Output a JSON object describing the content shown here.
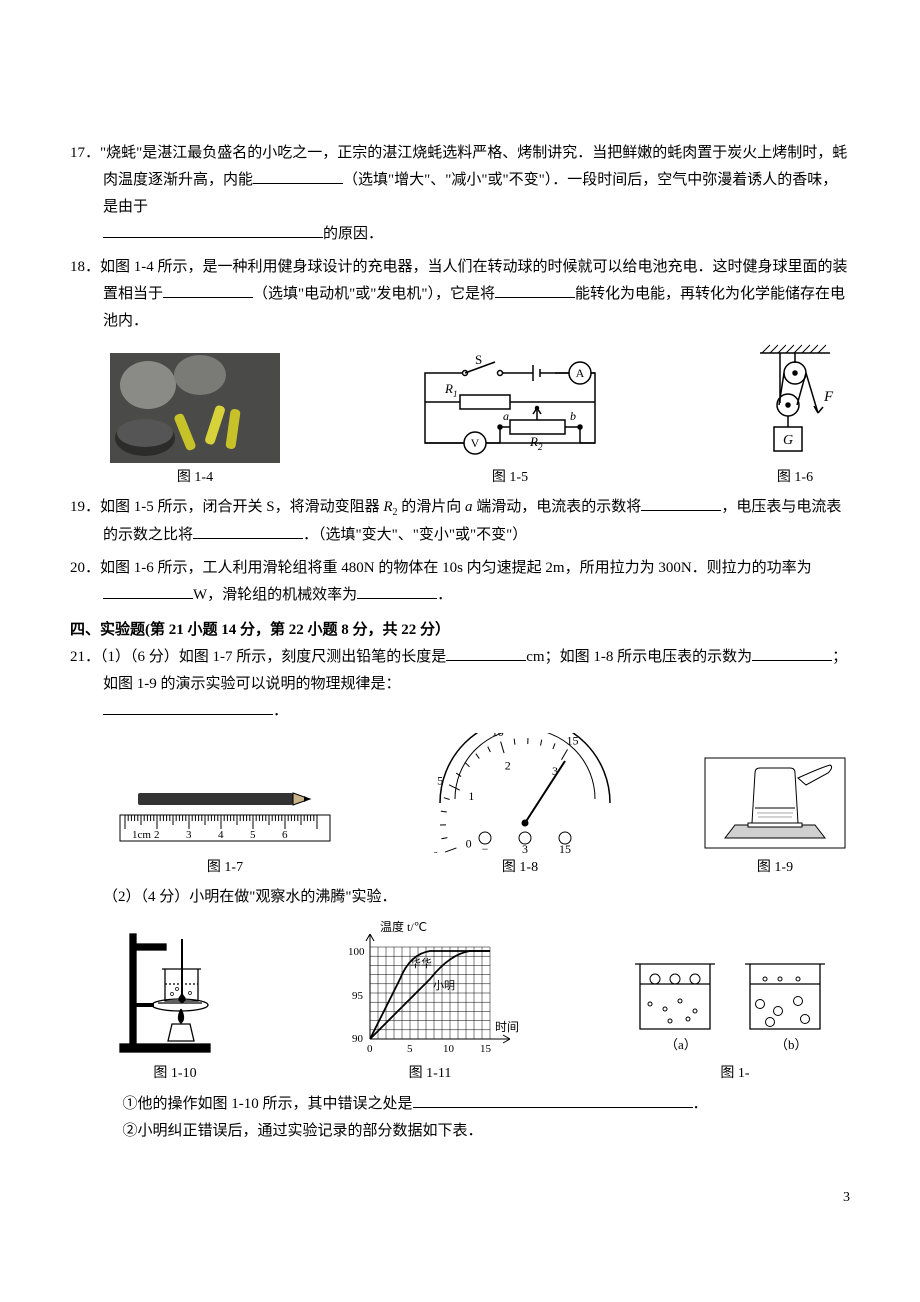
{
  "q17": {
    "num": "17．",
    "line1_a": "\"烧蚝\"是湛江最负盛名的小吃之一，正宗的湛江烧蚝选料严格、烤制讲究．当把鲜嫩的蚝肉置于炭火上烤制时，蚝肉温度逐渐升高，内能",
    "line1_b": "（选填\"增大\"、\"减小\"或\"不变\"）．一段时间后，空气中弥漫着诱人的香味，是由于",
    "line1_c": "的原因．",
    "blank1_w": 90,
    "blank2_w": 220
  },
  "q18": {
    "num": "18．",
    "t1": "如图 1-4 所示，是一种利用健身球设计的充电器，当人们在转动球的时候就可以给电池充电．这时健身球里面的装置相当于",
    "t2": "（选填\"电动机\"或\"发电机\"），它是将",
    "t3": "能转化为电能，再转化为化学能储存在电池内．",
    "b1": 90,
    "b2": 80
  },
  "fig_row1": {
    "cap1": "图 1-4",
    "cap2": "图 1-5",
    "cap3": "图 1-6",
    "circuit": {
      "S": "S",
      "A": "A",
      "V": "V",
      "R1": "R",
      "R1s": "1",
      "R2": "R",
      "R2s": "2",
      "a": "a",
      "b": "b"
    },
    "pulley": {
      "F": "F",
      "G": "G"
    }
  },
  "q19": {
    "num": "19．",
    "t1": "如图 1-5 所示，闭合开关 S，将滑动变阻器 ",
    "Rlabel": "R",
    "Rsub": "2",
    "t2": " 的滑片向 ",
    "a": "a",
    "t3": " 端滑动，电流表的示数将",
    "t4": "，电压表与电流表的示数之比将",
    "t5": "．（选填\"变大\"、\"变小\"或\"不变\"）",
    "b1": 80,
    "b2": 110
  },
  "q20": {
    "num": "20．",
    "t1": "如图 1-6 所示，工人利用滑轮组将重 480N 的物体在 10s 内匀速提起 2m，所用拉力为 300N．则拉力的功率为",
    "t2": "W，滑轮组的机械效率为",
    "t3": "．",
    "b1": 90,
    "b2": 80
  },
  "sec4": "四、实验题(第 21 小题 14 分，第 22 小题 8 分，共 22 分）",
  "q21": {
    "num": "21．",
    "p1a": "（1）（6 分）如图 1-7 所示，刻度尺测出铅笔的长度是",
    "p1b": "cm；如图 1-8 所示电压表的示数为",
    "p1c": "；如图 1-9 的演示实验可以说明的物理规律是：",
    "p1d": "．",
    "b1": 80,
    "b2": 80,
    "b3": 170
  },
  "fig_row2": {
    "cap1": "图 1-7",
    "cap2": "图 1-8",
    "cap3": "图 1-9",
    "ruler": {
      "unit": "1cm",
      "ticks": [
        "2",
        "3",
        "4",
        "5",
        "6"
      ]
    },
    "meter": {
      "top": [
        "0",
        "5",
        "10",
        "15"
      ],
      "bot": [
        "0",
        "1",
        "2",
        "3"
      ],
      "term_minus": "−",
      "term_a": "3",
      "term_b": "15"
    }
  },
  "q21p2": {
    "lead": "（2）（4 分）小明在做\"观察水的沸腾\"实验．"
  },
  "fig_row3": {
    "cap1": "图 1-10",
    "cap2": "图 1-11",
    "cap3": "图 1-",
    "chart": {
      "ylabel": "温度 t/℃",
      "xlabel": "时间",
      "yticks": [
        "100",
        "95",
        "90"
      ],
      "xticks": [
        "0",
        "5",
        "10",
        "15"
      ],
      "name1": "华华",
      "name2": "小明"
    },
    "beakers": {
      "a": "（a）",
      "b": "（b）"
    }
  },
  "q21p2_items": {
    "i1a": "①他的操作如图 1-10 所示，其中错误之处是",
    "i1b": "．",
    "b1": 280,
    "i2": "②小明纠正错误后，通过实验记录的部分数据如下表．"
  },
  "pageno": "3"
}
